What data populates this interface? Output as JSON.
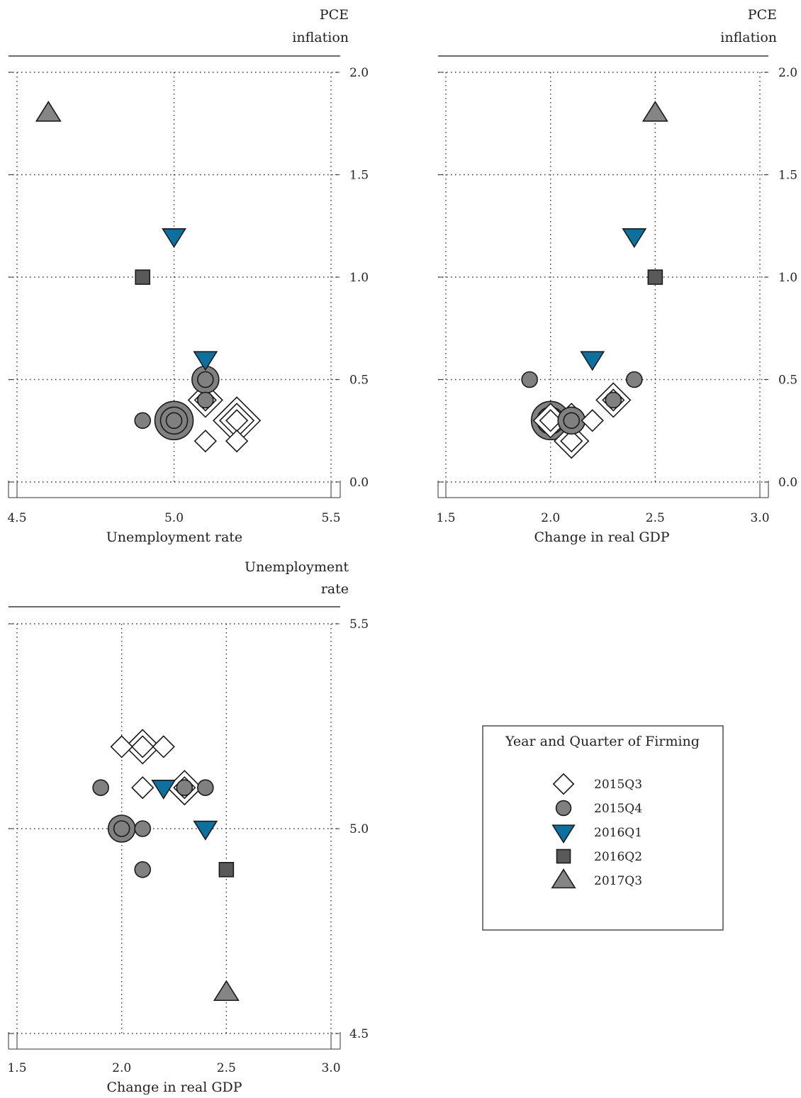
{
  "legend": {
    "title": "Year and Quarter of Firming",
    "entries": [
      {
        "label": "2015Q3",
        "marker": "diamond",
        "fill": "#ffffff"
      },
      {
        "label": "2015Q4",
        "marker": "circle",
        "fill": "#808080"
      },
      {
        "label": "2016Q1",
        "marker": "triangle-down",
        "fill": "#0b72a0"
      },
      {
        "label": "2016Q2",
        "marker": "square",
        "fill": "#595959"
      },
      {
        "label": "2017Q3",
        "marker": "triangle-up",
        "fill": "#858585"
      }
    ]
  },
  "chart_data": [
    {
      "type": "scatter",
      "xlabel": "Unemployment rate",
      "ylabel": "PCE inflation",
      "ylabel_lines": [
        "PCE",
        "inflation"
      ],
      "xlim": [
        4.5,
        5.5
      ],
      "ylim": [
        0.0,
        2.0
      ],
      "xticks": [
        4.5,
        5.0,
        5.5
      ],
      "yticks": [
        0.0,
        0.5,
        1.0,
        1.5,
        2.0
      ],
      "tick_decimals": 1,
      "grid": true,
      "series": [
        {
          "name": "2015Q3",
          "marker": "diamond",
          "points": [
            {
              "x": 5.1,
              "y": 0.4,
              "n": 2
            },
            {
              "x": 5.1,
              "y": 0.2,
              "n": 1
            },
            {
              "x": 5.2,
              "y": 0.3,
              "n": 3
            },
            {
              "x": 5.2,
              "y": 0.2,
              "n": 1
            }
          ]
        },
        {
          "name": "2015Q4",
          "marker": "circle",
          "points": [
            {
              "x": 5.1,
              "y": 0.5,
              "n": 2
            },
            {
              "x": 5.1,
              "y": 0.4,
              "n": 1
            },
            {
              "x": 4.9,
              "y": 0.3,
              "n": 1
            },
            {
              "x": 5.0,
              "y": 0.3,
              "n": 3
            }
          ]
        },
        {
          "name": "2016Q1",
          "marker": "triangle-down",
          "points": [
            {
              "x": 5.0,
              "y": 1.2,
              "n": 1
            },
            {
              "x": 5.1,
              "y": 0.6,
              "n": 1
            }
          ]
        },
        {
          "name": "2016Q2",
          "marker": "square",
          "points": [
            {
              "x": 4.9,
              "y": 1.0,
              "n": 1
            }
          ]
        },
        {
          "name": "2017Q3",
          "marker": "triangle-up",
          "points": [
            {
              "x": 4.6,
              "y": 1.8,
              "n": 1
            }
          ]
        }
      ]
    },
    {
      "type": "scatter",
      "xlabel": "Change in real GDP",
      "ylabel": "PCE inflation",
      "ylabel_lines": [
        "PCE",
        "inflation"
      ],
      "xlim": [
        1.5,
        3.0
      ],
      "ylim": [
        0.0,
        2.0
      ],
      "xticks": [
        1.5,
        2.0,
        2.5,
        3.0
      ],
      "yticks": [
        0.0,
        0.5,
        1.0,
        1.5,
        2.0
      ],
      "tick_decimals": 1,
      "grid": true,
      "series": [
        {
          "name": "2015Q3",
          "marker": "diamond",
          "points": [
            {
              "x": 2.3,
              "y": 0.4,
              "n": 2
            },
            {
              "x": 2.2,
              "y": 0.3,
              "n": 1
            },
            {
              "x": 2.1,
              "y": 0.3,
              "n": 2
            },
            {
              "x": 2.0,
              "y": 0.3,
              "n": 2
            },
            {
              "x": 2.1,
              "y": 0.2,
              "n": 2
            }
          ]
        },
        {
          "name": "2015Q4",
          "marker": "circle",
          "points": [
            {
              "x": 1.9,
              "y": 0.5,
              "n": 1
            },
            {
              "x": 2.4,
              "y": 0.5,
              "n": 1
            },
            {
              "x": 2.3,
              "y": 0.4,
              "n": 1
            },
            {
              "x": 2.0,
              "y": 0.3,
              "n": 3
            },
            {
              "x": 2.1,
              "y": 0.3,
              "n": 2
            }
          ]
        },
        {
          "name": "2016Q1",
          "marker": "triangle-down",
          "points": [
            {
              "x": 2.4,
              "y": 1.2,
              "n": 1
            },
            {
              "x": 2.2,
              "y": 0.6,
              "n": 1
            }
          ]
        },
        {
          "name": "2016Q2",
          "marker": "square",
          "points": [
            {
              "x": 2.5,
              "y": 1.0,
              "n": 1
            }
          ]
        },
        {
          "name": "2017Q3",
          "marker": "triangle-up",
          "points": [
            {
              "x": 2.5,
              "y": 1.8,
              "n": 1
            }
          ]
        }
      ]
    },
    {
      "type": "scatter",
      "xlabel": "Change in real GDP",
      "ylabel": "Unemployment rate",
      "ylabel_lines": [
        "Unemployment",
        "rate"
      ],
      "xlim": [
        1.5,
        3.0
      ],
      "ylim": [
        4.5,
        5.5
      ],
      "xticks": [
        1.5,
        2.0,
        2.5,
        3.0
      ],
      "yticks": [
        4.5,
        5.0,
        5.5
      ],
      "tick_decimals": 1,
      "grid": true,
      "series": [
        {
          "name": "2015Q3",
          "marker": "diamond",
          "points": [
            {
              "x": 2.0,
              "y": 5.2,
              "n": 1
            },
            {
              "x": 2.1,
              "y": 5.2,
              "n": 2
            },
            {
              "x": 2.2,
              "y": 5.2,
              "n": 1
            },
            {
              "x": 2.1,
              "y": 5.1,
              "n": 1
            },
            {
              "x": 2.3,
              "y": 5.1,
              "n": 2
            }
          ]
        },
        {
          "name": "2015Q4",
          "marker": "circle",
          "points": [
            {
              "x": 1.9,
              "y": 5.1,
              "n": 1
            },
            {
              "x": 2.3,
              "y": 5.1,
              "n": 1
            },
            {
              "x": 2.4,
              "y": 5.1,
              "n": 1
            },
            {
              "x": 2.0,
              "y": 5.0,
              "n": 2
            },
            {
              "x": 2.1,
              "y": 5.0,
              "n": 1
            },
            {
              "x": 2.1,
              "y": 4.9,
              "n": 1
            }
          ]
        },
        {
          "name": "2016Q1",
          "marker": "triangle-down",
          "points": [
            {
              "x": 2.2,
              "y": 5.1,
              "n": 1
            },
            {
              "x": 2.4,
              "y": 5.0,
              "n": 1
            }
          ]
        },
        {
          "name": "2016Q2",
          "marker": "square",
          "points": [
            {
              "x": 2.5,
              "y": 4.9,
              "n": 1
            }
          ]
        },
        {
          "name": "2017Q3",
          "marker": "triangle-up",
          "points": [
            {
              "x": 2.5,
              "y": 4.6,
              "n": 1
            }
          ]
        }
      ]
    }
  ]
}
